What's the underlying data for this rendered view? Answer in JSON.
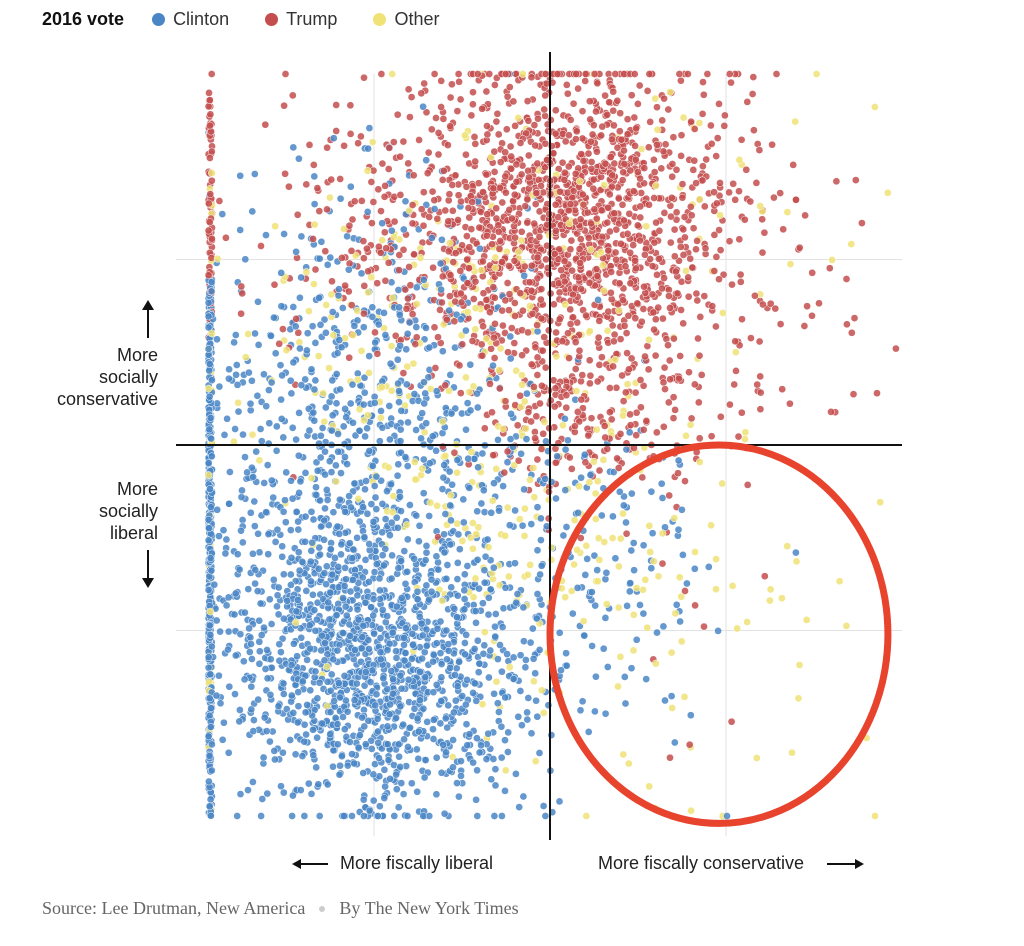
{
  "legend": {
    "title": "2016 vote",
    "items": [
      {
        "label": "Clinton",
        "color": "#4a86c5"
      },
      {
        "label": "Trump",
        "color": "#c44d4d"
      },
      {
        "label": "Other",
        "color": "#f0e275"
      }
    ]
  },
  "axes": {
    "y_upper_label": [
      "More",
      "socially",
      "conservative"
    ],
    "y_lower_label": [
      "More",
      "socially",
      "liberal"
    ],
    "x_left_label": "More fiscally liberal",
    "x_right_label": "More fiscally conservative"
  },
  "footer": {
    "source": "Source: Lee Drutman, New America",
    "byline": "By The New York Times"
  },
  "chart_data": {
    "type": "scatter",
    "title": "",
    "xlabel": "More fiscally liberal / More fiscally conservative",
    "ylabel": "More socially liberal / More socially conservative",
    "xlim": [
      -1,
      1
    ],
    "ylim": [
      -1,
      1
    ],
    "grid": true,
    "legend_position": "top-left",
    "axis_lines_at": {
      "x": 0,
      "y": 0
    },
    "series": [
      {
        "name": "Clinton",
        "color": "#4a86c5",
        "clusters": [
          {
            "center": [
              -0.5,
              -0.6
            ],
            "spread": [
              0.22,
              0.2
            ],
            "count": 1300
          },
          {
            "center": [
              -0.55,
              -0.15
            ],
            "spread": [
              0.25,
              0.25
            ],
            "count": 600
          },
          {
            "center": [
              -0.5,
              0.3
            ],
            "spread": [
              0.25,
              0.25
            ],
            "count": 300
          },
          {
            "center": [
              0.05,
              -0.3
            ],
            "spread": [
              0.15,
              0.2
            ],
            "count": 120
          },
          {
            "center": [
              0.3,
              -0.5
            ],
            "spread": [
              0.2,
              0.25
            ],
            "count": 30
          }
        ],
        "x_edge_band": {
          "x": -0.97,
          "y_range": [
            -1,
            0.45
          ],
          "count": 300
        }
      },
      {
        "name": "Trump",
        "color": "#c44d4d",
        "clusters": [
          {
            "center": [
              0.05,
              0.6
            ],
            "spread": [
              0.22,
              0.22
            ],
            "count": 1300
          },
          {
            "center": [
              -0.35,
              0.6
            ],
            "spread": [
              0.28,
              0.22
            ],
            "count": 300
          },
          {
            "center": [
              0.35,
              0.35
            ],
            "spread": [
              0.25,
              0.25
            ],
            "count": 220
          },
          {
            "center": [
              0.05,
              0.05
            ],
            "spread": [
              0.15,
              0.1
            ],
            "count": 120
          },
          {
            "center": [
              0.35,
              -0.5
            ],
            "spread": [
              0.15,
              0.25
            ],
            "count": 10
          }
        ],
        "x_edge_band": {
          "x": -0.97,
          "y_range": [
            0.3,
            0.95
          ],
          "count": 60
        }
      },
      {
        "name": "Other",
        "color": "#f0e275",
        "clusters": [
          {
            "center": [
              -0.3,
              0.25
            ],
            "spread": [
              0.3,
              0.3
            ],
            "count": 200
          },
          {
            "center": [
              -0.1,
              -0.25
            ],
            "spread": [
              0.25,
              0.25
            ],
            "count": 120
          },
          {
            "center": [
              0.4,
              -0.4
            ],
            "spread": [
              0.25,
              0.3
            ],
            "count": 70
          },
          {
            "center": [
              0.3,
              0.55
            ],
            "spread": [
              0.3,
              0.25
            ],
            "count": 60
          }
        ],
        "x_edge_band": {
          "x": -0.97,
          "y_range": [
            -1,
            0.9
          ],
          "count": 40
        }
      }
    ],
    "annotations": [
      {
        "type": "ellipse",
        "color": "#e8432d",
        "center": [
          0.48,
          -0.51
        ],
        "radius": [
          0.48,
          0.51
        ],
        "note": "red outline drawn around lower-right quadrant"
      }
    ]
  }
}
